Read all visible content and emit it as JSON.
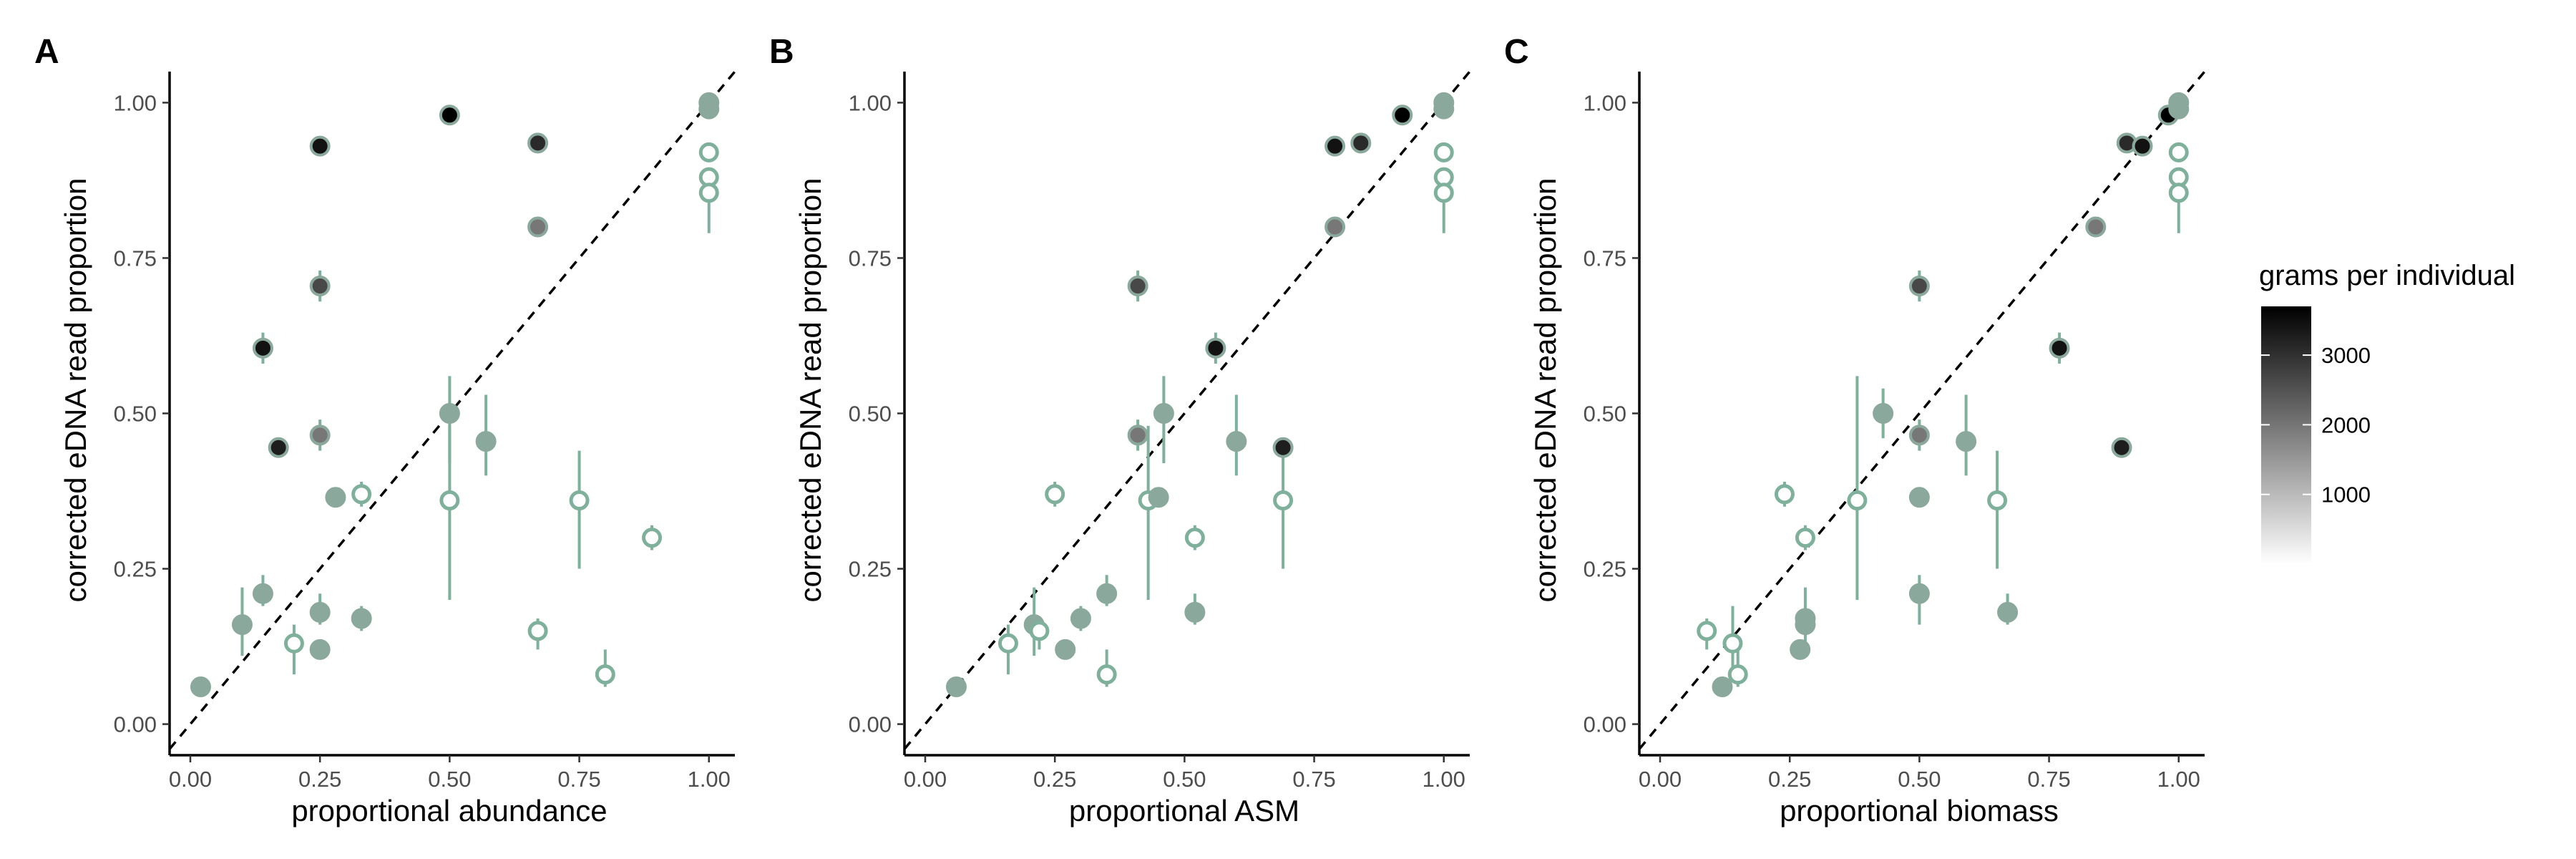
{
  "chart_data": [
    {
      "type": "scatter",
      "panel_label": "A",
      "xlabel": "proportional abundance",
      "ylabel": "corrected eDNA read proportion",
      "xlim": [
        -0.04,
        1.05
      ],
      "ylim": [
        -0.05,
        1.05
      ],
      "x_ticks": [
        0.0,
        0.25,
        0.5,
        0.75,
        1.0
      ],
      "x_tick_labels": [
        "0.00",
        "0.25",
        "0.50",
        "0.75",
        "1.00"
      ],
      "y_ticks": [
        0.0,
        0.25,
        0.5,
        0.75,
        1.0
      ],
      "y_tick_labels": [
        "0.00",
        "0.25",
        "0.50",
        "0.75",
        "1.00"
      ],
      "grid": false,
      "reference_line": "y = x (dashed)",
      "points": [
        {
          "x": 0.02,
          "y": 0.06,
          "filled": true,
          "grams": 0
        },
        {
          "x": 0.1,
          "y": 0.16,
          "filled": true,
          "grams": 0,
          "ymin": 0.11,
          "ymax": 0.22
        },
        {
          "x": 0.14,
          "y": 0.21,
          "filled": true,
          "grams": 0,
          "ymin": 0.19,
          "ymax": 0.24
        },
        {
          "x": 0.14,
          "y": 0.605,
          "filled": true,
          "grams": 3400,
          "ymin": 0.58,
          "ymax": 0.63
        },
        {
          "x": 0.17,
          "y": 0.445,
          "filled": true,
          "grams": 3200
        },
        {
          "x": 0.2,
          "y": 0.13,
          "filled": false,
          "grams": 0,
          "ymin": 0.08,
          "ymax": 0.16
        },
        {
          "x": 0.25,
          "y": 0.93,
          "filled": true,
          "grams": 3400
        },
        {
          "x": 0.25,
          "y": 0.705,
          "filled": true,
          "grams": 2500,
          "ymin": 0.68,
          "ymax": 0.73
        },
        {
          "x": 0.25,
          "y": 0.465,
          "filled": true,
          "grams": 1700,
          "ymin": 0.44,
          "ymax": 0.49
        },
        {
          "x": 0.25,
          "y": 0.18,
          "filled": true,
          "grams": 0,
          "ymin": 0.16,
          "ymax": 0.21
        },
        {
          "x": 0.25,
          "y": 0.12,
          "filled": true,
          "grams": 0
        },
        {
          "x": 0.28,
          "y": 0.365,
          "filled": true,
          "grams": 0
        },
        {
          "x": 0.33,
          "y": 0.37,
          "filled": false,
          "grams": 0,
          "ymin": 0.35,
          "ymax": 0.39
        },
        {
          "x": 0.33,
          "y": 0.17,
          "filled": true,
          "grams": 0,
          "ymin": 0.15,
          "ymax": 0.19
        },
        {
          "x": 0.5,
          "y": 0.98,
          "filled": true,
          "grams": 3700
        },
        {
          "x": 0.5,
          "y": 0.5,
          "filled": true,
          "grams": 0,
          "ymin": 0.42,
          "ymax": 0.56
        },
        {
          "x": 0.5,
          "y": 0.36,
          "filled": false,
          "grams": 0,
          "ymin": 0.2,
          "ymax": 0.48
        },
        {
          "x": 0.57,
          "y": 0.455,
          "filled": true,
          "grams": 0,
          "ymin": 0.4,
          "ymax": 0.53
        },
        {
          "x": 0.67,
          "y": 0.935,
          "filled": true,
          "grams": 3000
        },
        {
          "x": 0.67,
          "y": 0.8,
          "filled": true,
          "grams": 1700
        },
        {
          "x": 0.67,
          "y": 0.15,
          "filled": false,
          "grams": 0,
          "ymin": 0.12,
          "ymax": 0.17
        },
        {
          "x": 0.75,
          "y": 0.36,
          "filled": false,
          "grams": 0,
          "ymin": 0.25,
          "ymax": 0.44
        },
        {
          "x": 0.8,
          "y": 0.08,
          "filled": false,
          "grams": 0,
          "ymin": 0.06,
          "ymax": 0.12
        },
        {
          "x": 0.89,
          "y": 0.3,
          "filled": false,
          "grams": 0,
          "ymin": 0.28,
          "ymax": 0.32
        },
        {
          "x": 1.0,
          "y": 1.0,
          "filled": true,
          "grams": 0
        },
        {
          "x": 1.0,
          "y": 0.99,
          "filled": true,
          "grams": 0
        },
        {
          "x": 1.0,
          "y": 0.92,
          "filled": false,
          "grams": 0
        },
        {
          "x": 1.0,
          "y": 0.88,
          "filled": false,
          "grams": 0
        },
        {
          "x": 1.0,
          "y": 0.855,
          "filled": false,
          "grams": 0,
          "ymin": 0.79,
          "ymax": 0.88
        }
      ]
    },
    {
      "type": "scatter",
      "panel_label": "B",
      "xlabel": "proportional ASM",
      "ylabel": "corrected eDNA read proportion",
      "xlim": [
        -0.04,
        1.05
      ],
      "ylim": [
        -0.05,
        1.05
      ],
      "x_ticks": [
        0.0,
        0.25,
        0.5,
        0.75,
        1.0
      ],
      "x_tick_labels": [
        "0.00",
        "0.25",
        "0.50",
        "0.75",
        "1.00"
      ],
      "y_ticks": [
        0.0,
        0.25,
        0.5,
        0.75,
        1.0
      ],
      "y_tick_labels": [
        "0.00",
        "0.25",
        "0.50",
        "0.75",
        "1.00"
      ],
      "grid": false,
      "reference_line": "y = x (dashed)",
      "points": [
        {
          "x": 0.06,
          "y": 0.06,
          "filled": true,
          "grams": 0
        },
        {
          "x": 0.16,
          "y": 0.13,
          "filled": false,
          "grams": 0,
          "ymin": 0.08,
          "ymax": 0.16
        },
        {
          "x": 0.21,
          "y": 0.16,
          "filled": true,
          "grams": 0,
          "ymin": 0.11,
          "ymax": 0.22
        },
        {
          "x": 0.22,
          "y": 0.15,
          "filled": false,
          "grams": 0,
          "ymin": 0.12,
          "ymax": 0.17
        },
        {
          "x": 0.25,
          "y": 0.37,
          "filled": false,
          "grams": 0,
          "ymin": 0.35,
          "ymax": 0.39
        },
        {
          "x": 0.27,
          "y": 0.12,
          "filled": true,
          "grams": 0
        },
        {
          "x": 0.3,
          "y": 0.17,
          "filled": true,
          "grams": 0,
          "ymin": 0.15,
          "ymax": 0.19
        },
        {
          "x": 0.35,
          "y": 0.08,
          "filled": false,
          "grams": 0,
          "ymin": 0.06,
          "ymax": 0.12
        },
        {
          "x": 0.35,
          "y": 0.21,
          "filled": true,
          "grams": 0,
          "ymin": 0.19,
          "ymax": 0.24
        },
        {
          "x": 0.41,
          "y": 0.705,
          "filled": true,
          "grams": 2500,
          "ymin": 0.68,
          "ymax": 0.73
        },
        {
          "x": 0.41,
          "y": 0.465,
          "filled": true,
          "grams": 1700,
          "ymin": 0.44,
          "ymax": 0.49
        },
        {
          "x": 0.43,
          "y": 0.36,
          "filled": false,
          "grams": 0,
          "ymin": 0.2,
          "ymax": 0.48
        },
        {
          "x": 0.45,
          "y": 0.365,
          "filled": true,
          "grams": 0
        },
        {
          "x": 0.46,
          "y": 0.5,
          "filled": true,
          "grams": 0,
          "ymin": 0.42,
          "ymax": 0.56
        },
        {
          "x": 0.52,
          "y": 0.3,
          "filled": false,
          "grams": 0,
          "ymin": 0.28,
          "ymax": 0.32
        },
        {
          "x": 0.52,
          "y": 0.18,
          "filled": true,
          "grams": 0,
          "ymin": 0.16,
          "ymax": 0.21
        },
        {
          "x": 0.56,
          "y": 0.605,
          "filled": true,
          "grams": 3400,
          "ymin": 0.58,
          "ymax": 0.63
        },
        {
          "x": 0.6,
          "y": 0.455,
          "filled": true,
          "grams": 0,
          "ymin": 0.4,
          "ymax": 0.53
        },
        {
          "x": 0.69,
          "y": 0.445,
          "filled": true,
          "grams": 3200
        },
        {
          "x": 0.69,
          "y": 0.36,
          "filled": false,
          "grams": 0,
          "ymin": 0.25,
          "ymax": 0.44
        },
        {
          "x": 0.79,
          "y": 0.93,
          "filled": true,
          "grams": 3400
        },
        {
          "x": 0.79,
          "y": 0.8,
          "filled": true,
          "grams": 1700
        },
        {
          "x": 0.84,
          "y": 0.935,
          "filled": true,
          "grams": 3000
        },
        {
          "x": 0.92,
          "y": 0.98,
          "filled": true,
          "grams": 3700
        },
        {
          "x": 1.0,
          "y": 1.0,
          "filled": true,
          "grams": 0
        },
        {
          "x": 1.0,
          "y": 0.99,
          "filled": true,
          "grams": 0
        },
        {
          "x": 1.0,
          "y": 0.92,
          "filled": false,
          "grams": 0
        },
        {
          "x": 1.0,
          "y": 0.88,
          "filled": false,
          "grams": 0
        },
        {
          "x": 1.0,
          "y": 0.855,
          "filled": false,
          "grams": 0,
          "ymin": 0.79,
          "ymax": 0.88
        }
      ]
    },
    {
      "type": "scatter",
      "panel_label": "C",
      "xlabel": "proportional biomass",
      "ylabel": "corrected eDNA read proportion",
      "xlim": [
        -0.04,
        1.05
      ],
      "ylim": [
        -0.05,
        1.05
      ],
      "x_ticks": [
        0.0,
        0.25,
        0.5,
        0.75,
        1.0
      ],
      "x_tick_labels": [
        "0.00",
        "0.25",
        "0.50",
        "0.75",
        "1.00"
      ],
      "y_ticks": [
        0.0,
        0.25,
        0.5,
        0.75,
        1.0
      ],
      "y_tick_labels": [
        "0.00",
        "0.25",
        "0.50",
        "0.75",
        "1.00"
      ],
      "grid": false,
      "reference_line": "y = x (dashed)",
      "points": [
        {
          "x": 0.09,
          "y": 0.15,
          "filled": false,
          "grams": 0,
          "ymin": 0.12,
          "ymax": 0.17
        },
        {
          "x": 0.12,
          "y": 0.06,
          "filled": true,
          "grams": 0
        },
        {
          "x": 0.14,
          "y": 0.13,
          "filled": false,
          "grams": 0,
          "ymin": 0.08,
          "ymax": 0.19
        },
        {
          "x": 0.15,
          "y": 0.08,
          "filled": false,
          "grams": 0,
          "ymin": 0.06,
          "ymax": 0.12
        },
        {
          "x": 0.24,
          "y": 0.37,
          "filled": false,
          "grams": 0,
          "ymin": 0.35,
          "ymax": 0.39
        },
        {
          "x": 0.27,
          "y": 0.12,
          "filled": true,
          "grams": 0
        },
        {
          "x": 0.28,
          "y": 0.16,
          "filled": true,
          "grams": 0,
          "ymin": 0.11,
          "ymax": 0.22
        },
        {
          "x": 0.28,
          "y": 0.3,
          "filled": false,
          "grams": 0,
          "ymin": 0.28,
          "ymax": 0.32
        },
        {
          "x": 0.28,
          "y": 0.17,
          "filled": true,
          "grams": 0,
          "ymin": 0.15,
          "ymax": 0.19
        },
        {
          "x": 0.38,
          "y": 0.36,
          "filled": false,
          "grams": 0,
          "ymin": 0.2,
          "ymax": 0.56
        },
        {
          "x": 0.43,
          "y": 0.5,
          "filled": true,
          "grams": 0,
          "ymin": 0.46,
          "ymax": 0.54
        },
        {
          "x": 0.5,
          "y": 0.365,
          "filled": true,
          "grams": 0
        },
        {
          "x": 0.5,
          "y": 0.705,
          "filled": true,
          "grams": 2500,
          "ymin": 0.68,
          "ymax": 0.73
        },
        {
          "x": 0.5,
          "y": 0.465,
          "filled": true,
          "grams": 1700,
          "ymin": 0.44,
          "ymax": 0.49
        },
        {
          "x": 0.5,
          "y": 0.21,
          "filled": true,
          "grams": 0,
          "ymin": 0.16,
          "ymax": 0.24
        },
        {
          "x": 0.59,
          "y": 0.455,
          "filled": true,
          "grams": 0,
          "ymin": 0.4,
          "ymax": 0.53
        },
        {
          "x": 0.65,
          "y": 0.36,
          "filled": false,
          "grams": 0,
          "ymin": 0.25,
          "ymax": 0.44
        },
        {
          "x": 0.67,
          "y": 0.18,
          "filled": true,
          "grams": 0,
          "ymin": 0.16,
          "ymax": 0.21
        },
        {
          "x": 0.77,
          "y": 0.605,
          "filled": true,
          "grams": 3400,
          "ymin": 0.58,
          "ymax": 0.63
        },
        {
          "x": 0.84,
          "y": 0.8,
          "filled": true,
          "grams": 1700
        },
        {
          "x": 0.89,
          "y": 0.445,
          "filled": true,
          "grams": 3200
        },
        {
          "x": 0.9,
          "y": 0.935,
          "filled": true,
          "grams": 3000
        },
        {
          "x": 0.93,
          "y": 0.93,
          "filled": true,
          "grams": 3400
        },
        {
          "x": 0.98,
          "y": 0.98,
          "filled": true,
          "grams": 3700
        },
        {
          "x": 1.0,
          "y": 1.0,
          "filled": true,
          "grams": 0
        },
        {
          "x": 1.0,
          "y": 0.99,
          "filled": true,
          "grams": 0
        },
        {
          "x": 1.0,
          "y": 0.92,
          "filled": false,
          "grams": 0
        },
        {
          "x": 1.0,
          "y": 0.88,
          "filled": false,
          "grams": 0
        },
        {
          "x": 1.0,
          "y": 0.855,
          "filled": false,
          "grams": 0,
          "ymin": 0.79,
          "ymax": 0.88
        }
      ]
    }
  ],
  "legend": {
    "title": "grams per individual",
    "placement": "right",
    "scale_range": [
      0,
      3700
    ],
    "ticks": [
      1000,
      2000,
      3000
    ],
    "tick_labels": [
      "1000",
      "2000",
      "3000"
    ],
    "color_low": "#ffffff",
    "color_high": "#000000"
  },
  "colors": {
    "point_base": "#8aa89c",
    "point_outline": "#7fb09c",
    "errorbar": "#7fb09c",
    "reference_line": "#000000",
    "axis": "#000000"
  }
}
